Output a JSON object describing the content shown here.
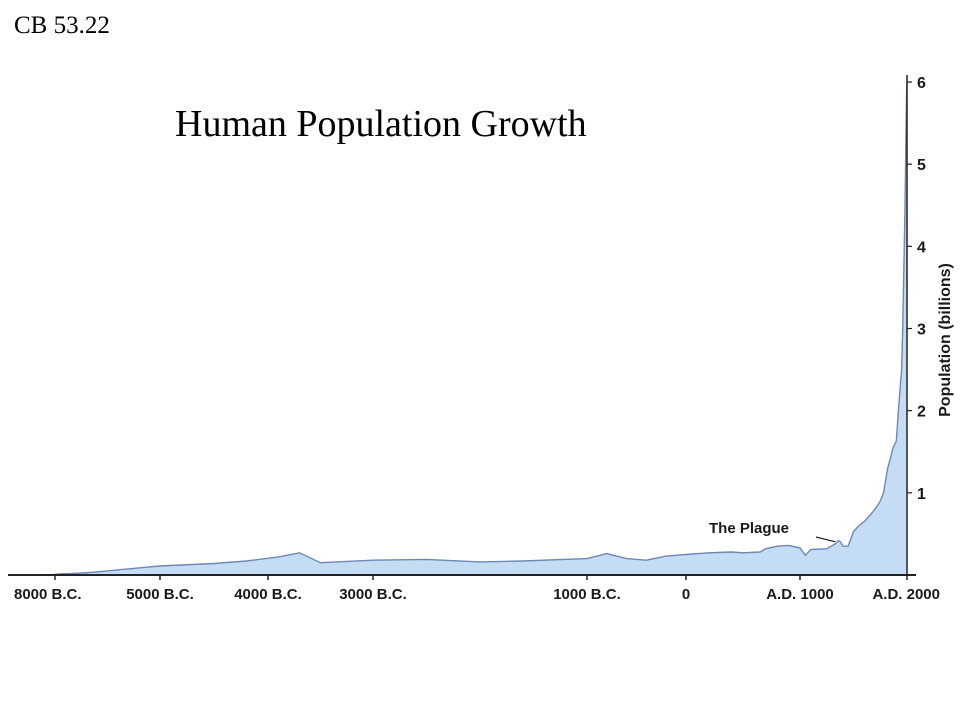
{
  "slide": {
    "corner_label": "CB 53.22"
  },
  "chart_data": {
    "type": "area",
    "title": "Human Population Growth",
    "xlabel": "",
    "ylabel": "Population (billions)",
    "x_unit": "year",
    "xlim": [
      -8000,
      2000
    ],
    "ylim": [
      0,
      6
    ],
    "y_ticks": [
      1,
      2,
      3,
      4,
      5,
      6
    ],
    "x_ticks": [
      {
        "value": -8000,
        "label": "8000 B.C."
      },
      {
        "value": -5000,
        "label": "5000 B.C."
      },
      {
        "value": -4000,
        "label": "4000 B.C."
      },
      {
        "value": -3000,
        "label": "3000 B.C."
      },
      {
        "value": -1000,
        "label": "1000 B.C."
      },
      {
        "value": 0,
        "label": "0"
      },
      {
        "value": 1000,
        "label": "A.D. 1000"
      },
      {
        "value": 2000,
        "label": "A.D. 2000"
      }
    ],
    "grid": false,
    "fill_color": "#c5dcf5",
    "line_color": "#6f87b5",
    "series": [
      {
        "x": [
          -8000,
          -7500,
          -7000,
          -6500,
          -6000,
          -5500,
          -5000,
          -4500,
          -4200,
          -3900,
          -3700,
          -3500,
          -3000,
          -2500,
          -2000,
          -1600,
          -1000,
          -800,
          -600,
          -400,
          -200,
          0,
          200,
          400,
          500,
          650,
          700,
          800,
          900,
          1000,
          1050,
          1100,
          1250,
          1330,
          1360,
          1380,
          1400,
          1450,
          1500,
          1550,
          1600,
          1650,
          1700,
          1750,
          1780,
          1800,
          1820,
          1850,
          1870,
          1900,
          1920,
          1950,
          1960,
          1970,
          1980,
          1990,
          1995,
          2000
        ],
        "y": [
          0.01,
          0.02,
          0.03,
          0.05,
          0.07,
          0.09,
          0.11,
          0.14,
          0.17,
          0.22,
          0.27,
          0.15,
          0.18,
          0.19,
          0.16,
          0.17,
          0.2,
          0.26,
          0.2,
          0.18,
          0.23,
          0.25,
          0.27,
          0.28,
          0.27,
          0.28,
          0.32,
          0.35,
          0.36,
          0.33,
          0.24,
          0.31,
          0.32,
          0.38,
          0.42,
          0.4,
          0.35,
          0.35,
          0.53,
          0.6,
          0.65,
          0.72,
          0.8,
          0.9,
          1.0,
          1.15,
          1.3,
          1.45,
          1.55,
          1.63,
          2.0,
          2.5,
          3.0,
          3.7,
          4.4,
          5.3,
          5.8,
          6.0
        ]
      }
    ],
    "annotations": [
      {
        "text": "The Plague",
        "x": 1348,
        "y": 0.38
      }
    ]
  }
}
